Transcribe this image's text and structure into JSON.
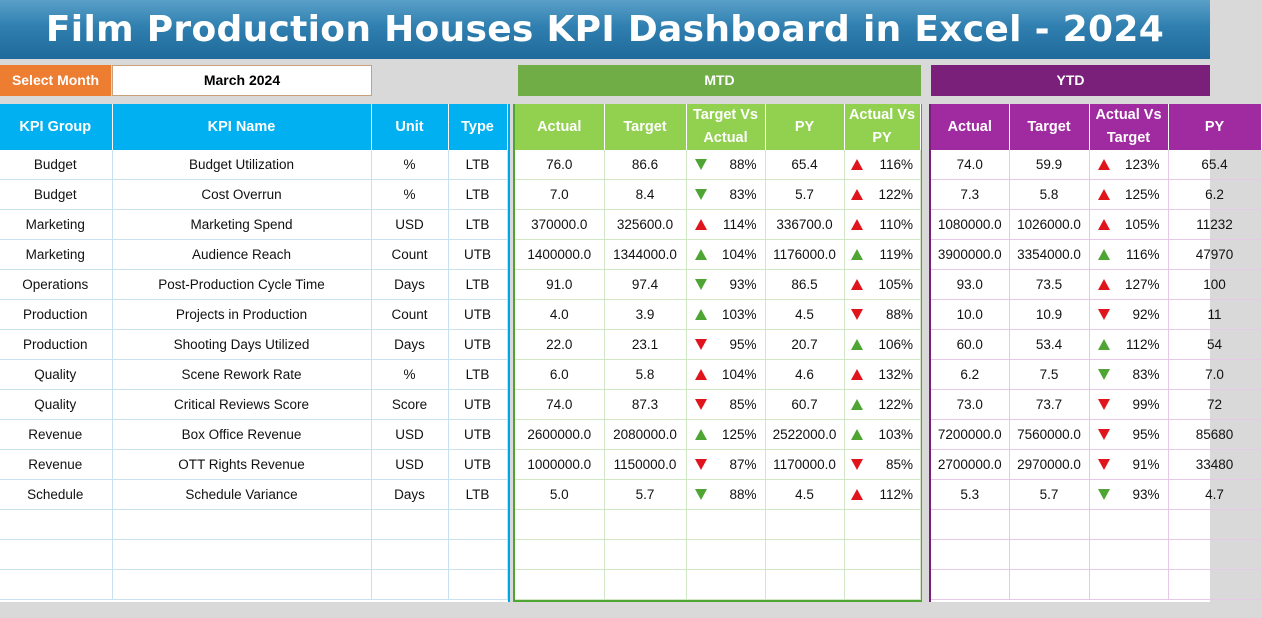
{
  "title": "Film Production Houses KPI Dashboard in Excel - 2024",
  "select_month": {
    "label": "Select Month",
    "value": "March 2024"
  },
  "sections": {
    "mtd": "MTD",
    "ytd": "YTD"
  },
  "kpi_headers": [
    "KPI Group",
    "KPI Name",
    "Unit",
    "Type"
  ],
  "mtd_headers": [
    "Actual",
    "Target",
    "Target Vs Actual",
    "PY",
    "Actual Vs PY"
  ],
  "ytd_headers": [
    "Actual",
    "Target",
    "Actual Vs Target",
    "PY"
  ],
  "colors": {
    "up_good": "#4ea534",
    "bad": "#e0141b",
    "kpi_header": "#00b0f0",
    "mtd": "#70ad47",
    "ytd": "#7a1f7a",
    "select_label": "#ed7d31"
  },
  "rows": [
    {
      "group": "Budget",
      "name": "Budget Utilization",
      "unit": "%",
      "type": "LTB",
      "mtd": {
        "actual": "76.0",
        "target": "86.6",
        "tva": {
          "pct": "88%",
          "dir": "down",
          "color": "green"
        },
        "py": "65.4",
        "avp": {
          "pct": "116%",
          "dir": "up",
          "color": "red"
        }
      },
      "ytd": {
        "actual": "74.0",
        "target": "59.9",
        "avt": {
          "pct": "123%",
          "dir": "up",
          "color": "red"
        },
        "py": "65.4"
      }
    },
    {
      "group": "Budget",
      "name": "Cost Overrun",
      "unit": "%",
      "type": "LTB",
      "mtd": {
        "actual": "7.0",
        "target": "8.4",
        "tva": {
          "pct": "83%",
          "dir": "down",
          "color": "green"
        },
        "py": "5.7",
        "avp": {
          "pct": "122%",
          "dir": "up",
          "color": "red"
        }
      },
      "ytd": {
        "actual": "7.3",
        "target": "5.8",
        "avt": {
          "pct": "125%",
          "dir": "up",
          "color": "red"
        },
        "py": "6.2"
      }
    },
    {
      "group": "Marketing",
      "name": "Marketing Spend",
      "unit": "USD",
      "type": "LTB",
      "mtd": {
        "actual": "370000.0",
        "target": "325600.0",
        "tva": {
          "pct": "114%",
          "dir": "up",
          "color": "red"
        },
        "py": "336700.0",
        "avp": {
          "pct": "110%",
          "dir": "up",
          "color": "red"
        }
      },
      "ytd": {
        "actual": "1080000.0",
        "target": "1026000.0",
        "avt": {
          "pct": "105%",
          "dir": "up",
          "color": "red"
        },
        "py": "11232"
      }
    },
    {
      "group": "Marketing",
      "name": "Audience Reach",
      "unit": "Count",
      "type": "UTB",
      "mtd": {
        "actual": "1400000.0",
        "target": "1344000.0",
        "tva": {
          "pct": "104%",
          "dir": "up",
          "color": "green"
        },
        "py": "1176000.0",
        "avp": {
          "pct": "119%",
          "dir": "up",
          "color": "green"
        }
      },
      "ytd": {
        "actual": "3900000.0",
        "target": "3354000.0",
        "avt": {
          "pct": "116%",
          "dir": "up",
          "color": "green"
        },
        "py": "47970"
      }
    },
    {
      "group": "Operations",
      "name": "Post-Production Cycle Time",
      "unit": "Days",
      "type": "LTB",
      "mtd": {
        "actual": "91.0",
        "target": "97.4",
        "tva": {
          "pct": "93%",
          "dir": "down",
          "color": "green"
        },
        "py": "86.5",
        "avp": {
          "pct": "105%",
          "dir": "up",
          "color": "red"
        }
      },
      "ytd": {
        "actual": "93.0",
        "target": "73.5",
        "avt": {
          "pct": "127%",
          "dir": "up",
          "color": "red"
        },
        "py": "100"
      }
    },
    {
      "group": "Production",
      "name": "Projects in Production",
      "unit": "Count",
      "type": "UTB",
      "mtd": {
        "actual": "4.0",
        "target": "3.9",
        "tva": {
          "pct": "103%",
          "dir": "up",
          "color": "green"
        },
        "py": "4.5",
        "avp": {
          "pct": "88%",
          "dir": "down",
          "color": "red"
        }
      },
      "ytd": {
        "actual": "10.0",
        "target": "10.9",
        "avt": {
          "pct": "92%",
          "dir": "down",
          "color": "red"
        },
        "py": "11"
      }
    },
    {
      "group": "Production",
      "name": "Shooting Days Utilized",
      "unit": "Days",
      "type": "UTB",
      "mtd": {
        "actual": "22.0",
        "target": "23.1",
        "tva": {
          "pct": "95%",
          "dir": "down",
          "color": "red"
        },
        "py": "20.7",
        "avp": {
          "pct": "106%",
          "dir": "up",
          "color": "green"
        }
      },
      "ytd": {
        "actual": "60.0",
        "target": "53.4",
        "avt": {
          "pct": "112%",
          "dir": "up",
          "color": "green"
        },
        "py": "54"
      }
    },
    {
      "group": "Quality",
      "name": "Scene Rework Rate",
      "unit": "%",
      "type": "LTB",
      "mtd": {
        "actual": "6.0",
        "target": "5.8",
        "tva": {
          "pct": "104%",
          "dir": "up",
          "color": "red"
        },
        "py": "4.6",
        "avp": {
          "pct": "132%",
          "dir": "up",
          "color": "red"
        }
      },
      "ytd": {
        "actual": "6.2",
        "target": "7.5",
        "avt": {
          "pct": "83%",
          "dir": "down",
          "color": "green"
        },
        "py": "7.0"
      }
    },
    {
      "group": "Quality",
      "name": "Critical Reviews Score",
      "unit": "Score",
      "type": "UTB",
      "mtd": {
        "actual": "74.0",
        "target": "87.3",
        "tva": {
          "pct": "85%",
          "dir": "down",
          "color": "red"
        },
        "py": "60.7",
        "avp": {
          "pct": "122%",
          "dir": "up",
          "color": "green"
        }
      },
      "ytd": {
        "actual": "73.0",
        "target": "73.7",
        "avt": {
          "pct": "99%",
          "dir": "down",
          "color": "red"
        },
        "py": "72"
      }
    },
    {
      "group": "Revenue",
      "name": "Box Office Revenue",
      "unit": "USD",
      "type": "UTB",
      "mtd": {
        "actual": "2600000.0",
        "target": "2080000.0",
        "tva": {
          "pct": "125%",
          "dir": "up",
          "color": "green"
        },
        "py": "2522000.0",
        "avp": {
          "pct": "103%",
          "dir": "up",
          "color": "green"
        }
      },
      "ytd": {
        "actual": "7200000.0",
        "target": "7560000.0",
        "avt": {
          "pct": "95%",
          "dir": "down",
          "color": "red"
        },
        "py": "85680"
      }
    },
    {
      "group": "Revenue",
      "name": "OTT Rights Revenue",
      "unit": "USD",
      "type": "UTB",
      "mtd": {
        "actual": "1000000.0",
        "target": "1150000.0",
        "tva": {
          "pct": "87%",
          "dir": "down",
          "color": "red"
        },
        "py": "1170000.0",
        "avp": {
          "pct": "85%",
          "dir": "down",
          "color": "red"
        }
      },
      "ytd": {
        "actual": "2700000.0",
        "target": "2970000.0",
        "avt": {
          "pct": "91%",
          "dir": "down",
          "color": "red"
        },
        "py": "33480"
      }
    },
    {
      "group": "Schedule",
      "name": "Schedule Variance",
      "unit": "Days",
      "type": "LTB",
      "mtd": {
        "actual": "5.0",
        "target": "5.7",
        "tva": {
          "pct": "88%",
          "dir": "down",
          "color": "green"
        },
        "py": "4.5",
        "avp": {
          "pct": "112%",
          "dir": "up",
          "color": "red"
        }
      },
      "ytd": {
        "actual": "5.3",
        "target": "5.7",
        "avt": {
          "pct": "93%",
          "dir": "down",
          "color": "green"
        },
        "py": "4.7"
      }
    }
  ]
}
